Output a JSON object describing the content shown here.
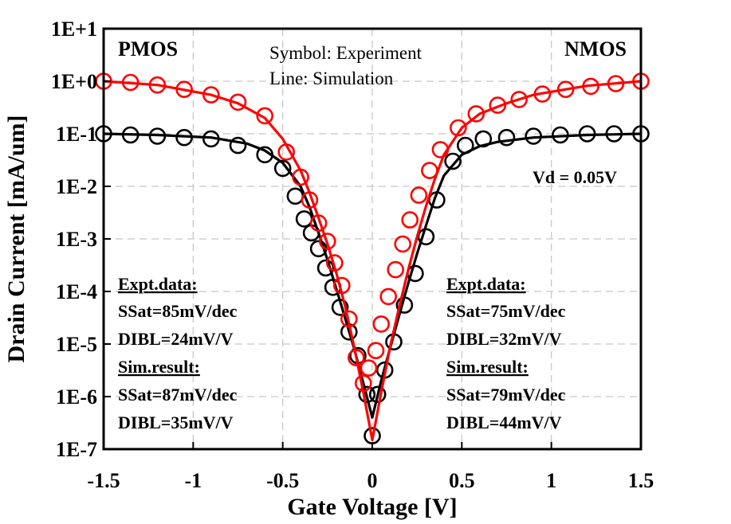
{
  "chart_data": {
    "type": "scatter",
    "xlabel": "Gate Voltage [V]",
    "ylabel": "Drain Current [mA/um]",
    "xlim": [
      -1.5,
      1.5
    ],
    "ylim": [
      1e-07,
      10
    ],
    "yscale": "log",
    "x_ticks": [
      "-1.5",
      "-1",
      "-0.5",
      "0",
      "0.5",
      "1",
      "1.5"
    ],
    "x_tick_values": [
      -1.5,
      -1,
      -0.5,
      0,
      0.5,
      1,
      1.5
    ],
    "y_ticks": [
      "1E-7",
      "1E-6",
      "1E-5",
      "1E-4",
      "1E-3",
      "1E-2",
      "1E-1",
      "1E+0",
      "1E+1"
    ],
    "y_tick_values": [
      1e-07,
      1e-06,
      1e-05,
      0.0001,
      0.001,
      0.01,
      0.1,
      1,
      10
    ],
    "grid": true,
    "series": [
      {
        "color": "#000000",
        "kind": "experiment",
        "x": [
          -1.5,
          -1.35,
          -1.2,
          -1.05,
          -0.9,
          -0.75,
          -0.6,
          -0.5,
          -0.43,
          -0.38,
          -0.34,
          -0.3,
          -0.26,
          -0.22,
          -0.18,
          -0.13,
          -0.08,
          -0.03,
          0.0,
          0.03,
          0.07,
          0.12,
          0.18,
          0.24,
          0.3,
          0.36,
          0.45,
          0.52,
          0.62,
          0.75,
          0.9,
          1.05,
          1.2,
          1.35,
          1.5
        ],
        "y": [
          0.1,
          0.095,
          0.09,
          0.085,
          0.08,
          0.06,
          0.04,
          0.022,
          0.0065,
          0.0024,
          0.0013,
          0.00065,
          0.00028,
          0.00012,
          5e-05,
          1.7e-05,
          6e-06,
          1.1e-06,
          1.8e-07,
          1.1e-06,
          3.2e-06,
          1.1e-05,
          5.5e-05,
          0.00022,
          0.0011,
          0.0055,
          0.03,
          0.06,
          0.08,
          0.085,
          0.09,
          0.095,
          0.1,
          0.1,
          0.1
        ]
      },
      {
        "color": "#000000",
        "kind": "simulation",
        "x": [
          -1.5,
          -1.2,
          -0.9,
          -0.7,
          -0.6,
          -0.5,
          -0.4,
          -0.35,
          -0.3,
          -0.25,
          -0.2,
          -0.15,
          -0.1,
          -0.05,
          0.0,
          0.05,
          0.1,
          0.15,
          0.2,
          0.25,
          0.3,
          0.35,
          0.4,
          0.5,
          0.6,
          0.7,
          0.9,
          1.2,
          1.5
        ],
        "y": [
          0.1,
          0.095,
          0.085,
          0.065,
          0.048,
          0.028,
          0.01,
          0.004,
          0.0013,
          0.0004,
          0.00011,
          3e-05,
          8e-06,
          1.8e-06,
          4e-07,
          2e-06,
          8.5e-06,
          3.5e-05,
          0.00014,
          0.00052,
          0.0018,
          0.006,
          0.016,
          0.04,
          0.058,
          0.07,
          0.085,
          0.095,
          0.1
        ]
      },
      {
        "color": "#ff0000",
        "kind": "experiment",
        "x": [
          -1.5,
          -1.35,
          -1.2,
          -1.05,
          -0.9,
          -0.75,
          -0.6,
          -0.48,
          -0.4,
          -0.35,
          -0.3,
          -0.25,
          -0.21,
          -0.17,
          -0.13,
          -0.09,
          -0.05,
          -0.02,
          0.02,
          0.05,
          0.09,
          0.13,
          0.17,
          0.21,
          0.26,
          0.32,
          0.38,
          0.48,
          0.58,
          0.7,
          0.82,
          0.95,
          1.08,
          1.22,
          1.36,
          1.5
        ],
        "y": [
          1.0,
          0.95,
          0.85,
          0.7,
          0.55,
          0.4,
          0.22,
          0.045,
          0.015,
          0.0055,
          0.002,
          0.0009,
          0.00035,
          0.00013,
          3e-05,
          5.5e-06,
          1.8e-06,
          3.5e-06,
          7.5e-06,
          2.4e-05,
          8e-05,
          0.00026,
          0.0008,
          0.0023,
          0.0068,
          0.02,
          0.05,
          0.13,
          0.24,
          0.35,
          0.45,
          0.57,
          0.7,
          0.8,
          0.9,
          1.0
        ]
      },
      {
        "color": "#ff0000",
        "kind": "simulation",
        "x": [
          -1.5,
          -1.2,
          -0.9,
          -0.75,
          -0.6,
          -0.5,
          -0.4,
          -0.35,
          -0.3,
          -0.25,
          -0.2,
          -0.15,
          -0.1,
          -0.05,
          0.0,
          0.05,
          0.1,
          0.15,
          0.2,
          0.25,
          0.3,
          0.35,
          0.4,
          0.5,
          0.6,
          0.75,
          0.9,
          1.2,
          1.5
        ],
        "y": [
          1.0,
          0.85,
          0.55,
          0.38,
          0.2,
          0.08,
          0.02,
          0.0075,
          0.0025,
          0.0008,
          0.00022,
          5e-05,
          8.5e-06,
          1.2e-06,
          1.5e-07,
          1.2e-06,
          9e-06,
          5e-05,
          0.00025,
          0.0011,
          0.0042,
          0.014,
          0.04,
          0.13,
          0.24,
          0.38,
          0.55,
          0.82,
          1.0
        ]
      }
    ]
  },
  "annotations": {
    "pmos": "PMOS",
    "nmos": "NMOS",
    "symbol": "Symbol: Experiment",
    "line": "Line: Simulation",
    "vd": "Vd = 0.05V",
    "pmos_expt_title": "Expt.data:",
    "pmos_expt_ss": "SSat=85mV/dec",
    "pmos_expt_dibl": "DIBL=24mV/V",
    "pmos_sim_title": "Sim.result:",
    "pmos_sim_ss": "SSat=87mV/dec",
    "pmos_sim_dibl": "DIBL=35mV/V",
    "nmos_expt_title": "Expt.data:",
    "nmos_expt_ss": "SSat=75mV/dec",
    "nmos_expt_dibl": "DIBL=32mV/V",
    "nmos_sim_title": "Sim.result:",
    "nmos_sim_ss": "SSat=79mV/dec",
    "nmos_sim_dibl": "DIBL=44mV/V"
  }
}
